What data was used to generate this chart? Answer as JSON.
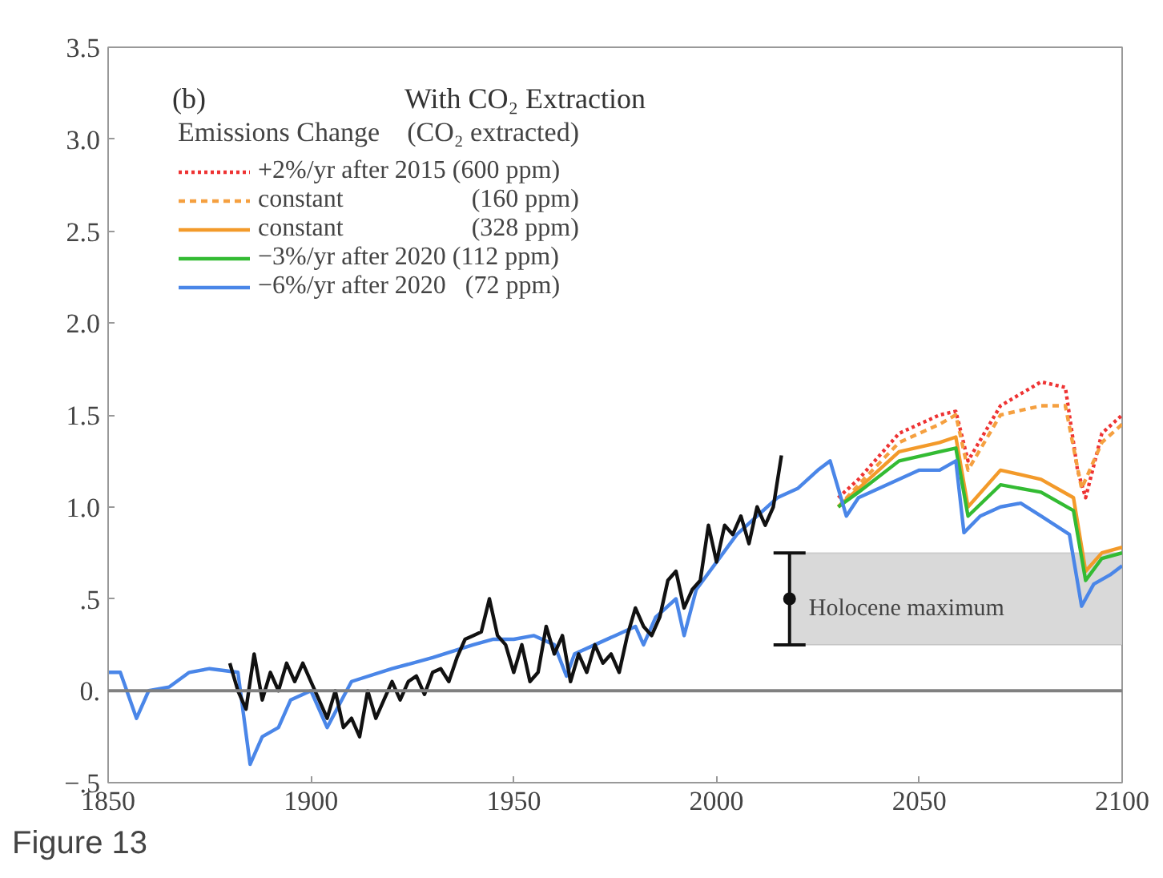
{
  "chart_data": {
    "type": "line",
    "title": "With CO₂ Extraction",
    "legend_title": "Emissions Change    (CO₂ extracted)",
    "legend": "top left",
    "grid": false,
    "xlim": [
      1850,
      2100
    ],
    "xticks": [
      1850,
      1900,
      1950,
      2000,
      2050,
      2100
    ],
    "ylim": [
      -0.5,
      3.5
    ],
    "yticks": [
      {
        "value": -0.5,
        "label": "−.5"
      },
      {
        "value": 0,
        "label": "0."
      },
      {
        "value": 0.5,
        "label": ".5"
      },
      {
        "value": 1,
        "label": "1.0"
      },
      {
        "value": 1.5,
        "label": "1.5"
      },
      {
        "value": 2,
        "label": "2.0"
      },
      {
        "value": 2.5,
        "label": "2.5"
      },
      {
        "value": 3,
        "label": "3.0"
      },
      {
        "value": 3.5,
        "label": "3.5"
      }
    ],
    "annotations": [
      "(b)",
      "Figure 13"
    ],
    "ref_lines": [
      {
        "axis": "y",
        "value": 0,
        "color": "#808080"
      }
    ],
    "bands": [
      {
        "axis": "y",
        "from": 0.25,
        "to": 0.75,
        "label": "Holocene maximum",
        "color": "#d9d9d9"
      }
    ],
    "series": [
      {
        "name": "+2%/yr after 2015 (600 ppm)",
        "color": "#ee3333",
        "line_style": "dotted",
        "x": [
          2030,
          2035,
          2045,
          2055,
          2059,
          2062,
          2070,
          2080,
          2086,
          2089,
          2091,
          2095,
          2100
        ],
        "values": [
          1.05,
          1.15,
          1.4,
          1.5,
          1.52,
          1.25,
          1.55,
          1.68,
          1.65,
          1.2,
          1.05,
          1.4,
          1.5
        ]
      },
      {
        "name": "constant                    (160 ppm)",
        "color": "#f5a040",
        "line_style": "dashed",
        "x": [
          2030,
          2035,
          2045,
          2055,
          2059,
          2062,
          2070,
          2080,
          2086,
          2090,
          2095,
          2100
        ],
        "values": [
          1.0,
          1.12,
          1.35,
          1.45,
          1.5,
          1.2,
          1.5,
          1.55,
          1.55,
          1.1,
          1.35,
          1.45
        ]
      },
      {
        "name": "constant                    (328 ppm)",
        "color": "#f39a2a",
        "line_style": "solid",
        "x": [
          2030,
          2035,
          2045,
          2055,
          2059,
          2062,
          2070,
          2080,
          2088,
          2091,
          2095,
          2100
        ],
        "values": [
          1.0,
          1.1,
          1.3,
          1.35,
          1.38,
          1.0,
          1.2,
          1.15,
          1.05,
          0.65,
          0.75,
          0.78
        ]
      },
      {
        "name": "−3%/yr after 2020 (112 ppm)",
        "color": "#33bb33",
        "line_style": "solid",
        "x": [
          2030,
          2035,
          2045,
          2055,
          2059,
          2062,
          2070,
          2080,
          2088,
          2091,
          2095,
          2100
        ],
        "values": [
          1.0,
          1.08,
          1.25,
          1.3,
          1.32,
          0.95,
          1.12,
          1.08,
          0.98,
          0.6,
          0.72,
          0.75
        ]
      },
      {
        "name": "−6%/yr after 2020   (72 ppm)",
        "color": "#4a86e8",
        "line_style": "solid",
        "x": [
          1850,
          1853,
          1857,
          1860,
          1865,
          1870,
          1875,
          1882,
          1885,
          1888,
          1892,
          1895,
          1900,
          1904,
          1910,
          1920,
          1930,
          1940,
          1945,
          1950,
          1955,
          1960,
          1963,
          1965,
          1970,
          1975,
          1980,
          1982,
          1985,
          1990,
          1992,
          1995,
          2000,
          2005,
          2010,
          2015,
          2020,
          2025,
          2028,
          2032,
          2035,
          2040,
          2045,
          2050,
          2055,
          2059,
          2061,
          2065,
          2070,
          2075,
          2080,
          2087,
          2090,
          2093,
          2097,
          2100
        ],
        "values": [
          0.1,
          0.1,
          -0.15,
          0.0,
          0.02,
          0.1,
          0.12,
          0.1,
          -0.4,
          -0.25,
          -0.2,
          -0.05,
          0.0,
          -0.2,
          0.05,
          0.12,
          0.18,
          0.25,
          0.28,
          0.28,
          0.3,
          0.25,
          0.08,
          0.2,
          0.25,
          0.3,
          0.35,
          0.25,
          0.4,
          0.5,
          0.3,
          0.55,
          0.7,
          0.85,
          0.95,
          1.05,
          1.1,
          1.2,
          1.25,
          0.95,
          1.05,
          1.1,
          1.15,
          1.2,
          1.2,
          1.25,
          0.86,
          0.95,
          1.0,
          1.02,
          0.95,
          0.85,
          0.46,
          0.58,
          0.63,
          0.68
        ]
      },
      {
        "color": "#111111",
        "line_style": "solid",
        "x": [
          1880,
          1882,
          1884,
          1886,
          1888,
          1890,
          1892,
          1894,
          1896,
          1898,
          1900,
          1902,
          1904,
          1906,
          1908,
          1910,
          1912,
          1914,
          1916,
          1918,
          1920,
          1922,
          1924,
          1926,
          1928,
          1930,
          1932,
          1934,
          1936,
          1938,
          1940,
          1942,
          1944,
          1946,
          1948,
          1950,
          1952,
          1954,
          1956,
          1958,
          1960,
          1962,
          1964,
          1966,
          1968,
          1970,
          1972,
          1974,
          1976,
          1978,
          1980,
          1982,
          1984,
          1986,
          1988,
          1990,
          1992,
          1994,
          1996,
          1998,
          2000,
          2002,
          2004,
          2006,
          2008,
          2010,
          2012,
          2014,
          2016
        ],
        "values": [
          0.15,
          0.0,
          -0.1,
          0.2,
          -0.05,
          0.1,
          0.0,
          0.15,
          0.05,
          0.15,
          0.05,
          -0.05,
          -0.15,
          0.0,
          -0.2,
          -0.15,
          -0.25,
          0.0,
          -0.15,
          -0.05,
          0.05,
          -0.05,
          0.05,
          0.08,
          -0.02,
          0.1,
          0.12,
          0.05,
          0.18,
          0.28,
          0.3,
          0.32,
          0.5,
          0.3,
          0.25,
          0.1,
          0.25,
          0.05,
          0.1,
          0.35,
          0.2,
          0.3,
          0.05,
          0.2,
          0.1,
          0.25,
          0.15,
          0.2,
          0.1,
          0.3,
          0.45,
          0.35,
          0.3,
          0.4,
          0.6,
          0.65,
          0.45,
          0.55,
          0.6,
          0.9,
          0.7,
          0.9,
          0.85,
          0.95,
          0.8,
          1.0,
          0.9,
          1.0,
          1.28
        ]
      },
      {
        "type": "scatter",
        "color": "#111111",
        "marker": "circle",
        "x": [
          2018
        ],
        "values": [
          0.5
        ],
        "errors": [
          0.25
        ]
      }
    ]
  }
}
